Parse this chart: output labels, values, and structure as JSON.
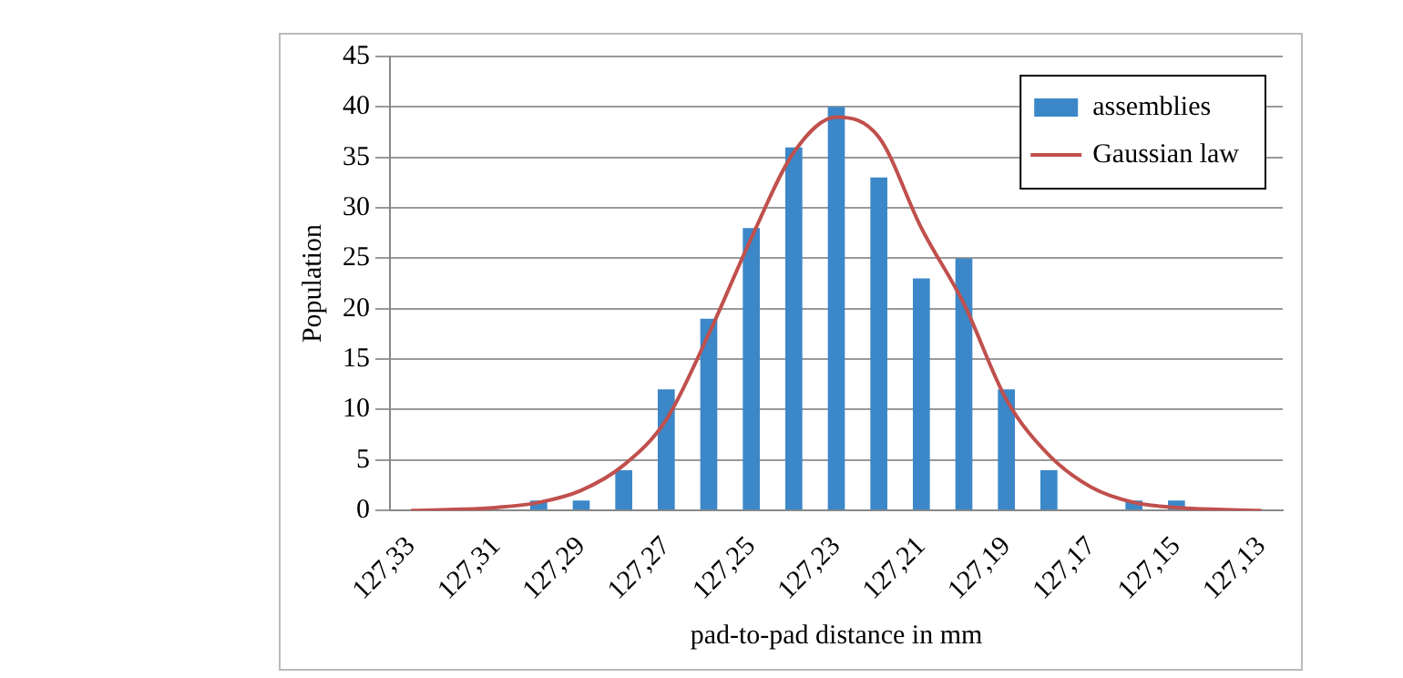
{
  "chart_data": {
    "type": "bar",
    "xlabel": "pad-to-pad distance in mm",
    "ylabel": "Population",
    "categories": [
      "127,33",
      null,
      "127,31",
      null,
      "127,29",
      null,
      "127,27",
      null,
      "127,25",
      null,
      "127,23",
      null,
      "127,21",
      null,
      "127,19",
      null,
      "127,17",
      null,
      "127,15",
      null,
      "127,13"
    ],
    "series": [
      {
        "name": "assemblies",
        "color": "#3c87c8",
        "values": [
          0,
          0,
          0,
          1,
          1,
          4,
          12,
          19,
          28,
          36,
          40,
          33,
          23,
          25,
          12,
          4,
          0,
          1,
          1,
          0,
          0
        ]
      },
      {
        "name": "Gaussian law",
        "type": "line",
        "color": "#c0504d",
        "values": [
          0,
          0.1,
          0.3,
          0.8,
          2,
          4.5,
          9,
          17.5,
          27,
          35.5,
          39,
          37,
          28,
          20.5,
          11,
          5.5,
          2.3,
          0.8,
          0.3,
          0.1,
          0
        ]
      }
    ],
    "ylim": [
      0,
      45
    ],
    "yticks": [
      0,
      5,
      10,
      15,
      20,
      25,
      30,
      35,
      40,
      45
    ],
    "grid": "y",
    "legend": "top right",
    "marker": "none"
  }
}
